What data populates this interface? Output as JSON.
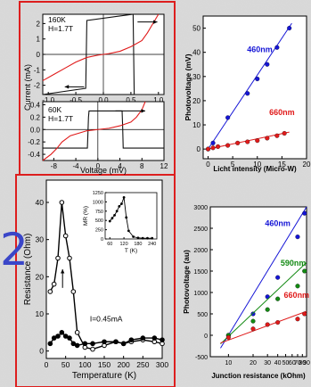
{
  "fig_label": "2",
  "panel_colors": {
    "frame_red": "#dd1e1e",
    "blue": "#1515d6",
    "red": "#e01a1a",
    "green": "#138a13",
    "black": "#111111"
  },
  "chart_data": [
    {
      "id": "a",
      "type": "line",
      "annotation_lines": [
        "160K",
        "H=1.7T"
      ],
      "xlabel": "",
      "ylabel": "",
      "xlim": [
        -1.1,
        1.1
      ],
      "ylim": [
        -2.6,
        2.6
      ],
      "x_ticks": [
        "-1.0",
        "-0.5",
        "0.0",
        "0.5",
        "1.0"
      ],
      "y_ticks": [
        "2",
        "1",
        "0",
        "-1",
        "-2"
      ],
      "series": [
        {
          "color": "black",
          "x": [
            -1.1,
            -0.32,
            -0.31,
            -0.3,
            0.54,
            0.55,
            0.56,
            1.1
          ],
          "y": [
            -2.6,
            -2.2,
            0,
            2.2,
            2.6,
            0,
            -2.6,
            -2.6
          ]
        },
        {
          "color": "red",
          "x": [
            -1.1,
            -0.9,
            -0.7,
            -0.5,
            -0.3,
            -0.1,
            0.1,
            0.3,
            0.5,
            0.7,
            0.8,
            0.9,
            1.0
          ],
          "y": [
            -1.7,
            -1.3,
            -0.9,
            -0.5,
            -0.2,
            -0.05,
            0.05,
            0.2,
            0.5,
            0.9,
            1.4,
            2.0,
            2.6
          ]
        }
      ],
      "arrows": [
        {
          "from": [
            0.62,
            2.1
          ],
          "to": [
            0.98,
            2.1
          ]
        },
        {
          "from": [
            -0.35,
            -2.1
          ],
          "to": [
            -0.7,
            -2.1
          ]
        }
      ]
    },
    {
      "id": "b",
      "type": "line",
      "annotation_lines": [
        "60K",
        "H=1.7T"
      ],
      "xlabel": "Voltage (mV)",
      "ylabel": "",
      "xlim": [
        -10,
        12
      ],
      "ylim": [
        -0.5,
        0.45
      ],
      "x_ticks": [
        "-8",
        "-4",
        "0",
        "4",
        "8",
        "12"
      ],
      "y_ticks": [
        "0.4",
        "0.2",
        "0.0",
        "-0.2",
        "-0.4"
      ],
      "series": [
        {
          "color": "black",
          "x": [
            -10,
            -1.9,
            -1.8,
            -1.7,
            -1.6,
            4.4,
            4.5,
            4.6,
            12
          ],
          "y": [
            -0.3,
            -0.3,
            -0.05,
            0.2,
            0.3,
            0.3,
            0.05,
            -0.3,
            -0.3
          ]
        },
        {
          "color": "red",
          "x": [
            -10,
            -8.5,
            -7.5,
            -6.5,
            -5,
            -2,
            0,
            2,
            4,
            6,
            7,
            8,
            8.6
          ],
          "y": [
            -0.5,
            -0.4,
            -0.31,
            -0.2,
            -0.1,
            -0.02,
            0,
            0.02,
            0.06,
            0.12,
            0.2,
            0.32,
            0.45
          ]
        }
      ],
      "arrows": [
        {
          "from": [
            3.2,
            0.3
          ],
          "to": [
            8.6,
            0.3
          ]
        }
      ]
    },
    {
      "id": "c",
      "type": "scatter",
      "title": "",
      "xlabel": "Licht intensity (Micro-W)",
      "ylabel": "Photovoltage (mV)",
      "xlim": [
        -1,
        20
      ],
      "ylim": [
        -4,
        55
      ],
      "x_ticks": [
        "0",
        "5",
        "10",
        "15",
        "20"
      ],
      "y_ticks": [
        "0",
        "10",
        "20",
        "30",
        "40",
        "50"
      ],
      "series": [
        {
          "name": "460nm",
          "color": "blue",
          "x": [
            0,
            1,
            4,
            8,
            10,
            12,
            14,
            16.5
          ],
          "y": [
            0,
            2.5,
            13,
            23,
            29,
            35,
            42,
            50
          ],
          "fit": [
            [
              0,
              0
            ],
            [
              17,
              52
            ]
          ]
        },
        {
          "name": "660nm",
          "color": "red",
          "x": [
            0,
            1,
            2,
            4,
            6,
            8,
            10,
            12,
            14,
            15.5
          ],
          "y": [
            0,
            0.5,
            1,
            1.5,
            2.5,
            3,
            3.5,
            4.5,
            5.5,
            6.5
          ],
          "fit": [
            [
              0,
              0
            ],
            [
              16.5,
              7
            ]
          ]
        }
      ]
    },
    {
      "id": "d",
      "type": "scatter",
      "xlabel": "Temperature (K)",
      "ylabel": "Resistance (Ohm)",
      "xlim": [
        0,
        300
      ],
      "ylim": [
        -2,
        46
      ],
      "x_ticks": [
        "0",
        "50",
        "100",
        "150",
        "200",
        "250",
        "300"
      ],
      "y_ticks": [
        "0",
        "10",
        "20",
        "30",
        "40"
      ],
      "annotation": "I=0.45mA",
      "series": [
        {
          "marker": "open",
          "x": [
            10,
            20,
            30,
            40,
            50,
            60,
            70,
            80,
            100,
            120,
            150,
            180,
            200,
            220,
            250,
            280,
            300
          ],
          "y": [
            16,
            18,
            25,
            40,
            31,
            25,
            16,
            5,
            1,
            0.5,
            1.5,
            2.5,
            2,
            2.5,
            3,
            2.5,
            2
          ]
        },
        {
          "marker": "filled",
          "x": [
            10,
            20,
            30,
            40,
            50,
            60,
            70,
            80,
            100,
            120,
            150,
            180,
            200,
            220,
            250,
            280,
            300
          ],
          "y": [
            2,
            3.5,
            4,
            5,
            4,
            3.5,
            2,
            1.5,
            2,
            2,
            2.5,
            2.5,
            2,
            3,
            3.5,
            3.5,
            3
          ]
        }
      ],
      "arrows": [
        {
          "from": [
            42,
            17
          ],
          "to": [
            42,
            22
          ]
        }
      ],
      "inset": {
        "xlabel": "T (K)",
        "ylabel": "MR (%)",
        "xlim": [
          40,
          260
        ],
        "ylim": [
          0,
          1250
        ],
        "x_ticks": [
          "60",
          "120",
          "180",
          "240"
        ],
        "y_ticks": [
          "0",
          "250",
          "500",
          "750",
          "1000",
          "1250"
        ],
        "x": [
          60,
          70,
          80,
          90,
          100,
          110,
          120,
          130,
          140,
          160,
          180,
          200,
          220,
          240
        ],
        "y": [
          480,
          560,
          640,
          750,
          880,
          950,
          1120,
          580,
          220,
          60,
          30,
          20,
          20,
          20
        ]
      }
    },
    {
      "id": "e",
      "type": "scatter",
      "xlabel": "Junction resistance (kOhm)",
      "ylabel": "Photovoltage (au)",
      "xscale": "log",
      "xlim": [
        6,
        90
      ],
      "ylim": [
        -500,
        3000
      ],
      "x_ticks": [
        "10",
        "20",
        "30",
        "40",
        "50",
        "60",
        "70",
        "80",
        "90"
      ],
      "y_ticks": [
        "3000",
        "2500",
        "2000",
        "1500",
        "1000",
        "500",
        "0",
        "-500"
      ],
      "series": [
        {
          "name": "460nm",
          "color": "blue",
          "x": [
            10,
            20,
            30,
            40,
            70,
            85
          ],
          "y": [
            0,
            500,
            900,
            1350,
            2300,
            2850
          ],
          "fit": [
            [
              8,
              -300
            ],
            [
              90,
              3000
            ]
          ]
        },
        {
          "name": "590nm",
          "color": "green",
          "x": [
            10,
            20,
            30,
            40,
            70,
            85
          ],
          "y": [
            0,
            330,
            600,
            850,
            1150,
            1500
          ],
          "fit": [
            [
              8,
              -200
            ],
            [
              90,
              1700
            ]
          ]
        },
        {
          "name": "660nm",
          "color": "red",
          "x": [
            10,
            20,
            30,
            40,
            70,
            85
          ],
          "y": [
            -50,
            150,
            250,
            300,
            380,
            500
          ],
          "fit": [
            [
              8,
              -180
            ],
            [
              90,
              560
            ]
          ]
        }
      ]
    }
  ]
}
